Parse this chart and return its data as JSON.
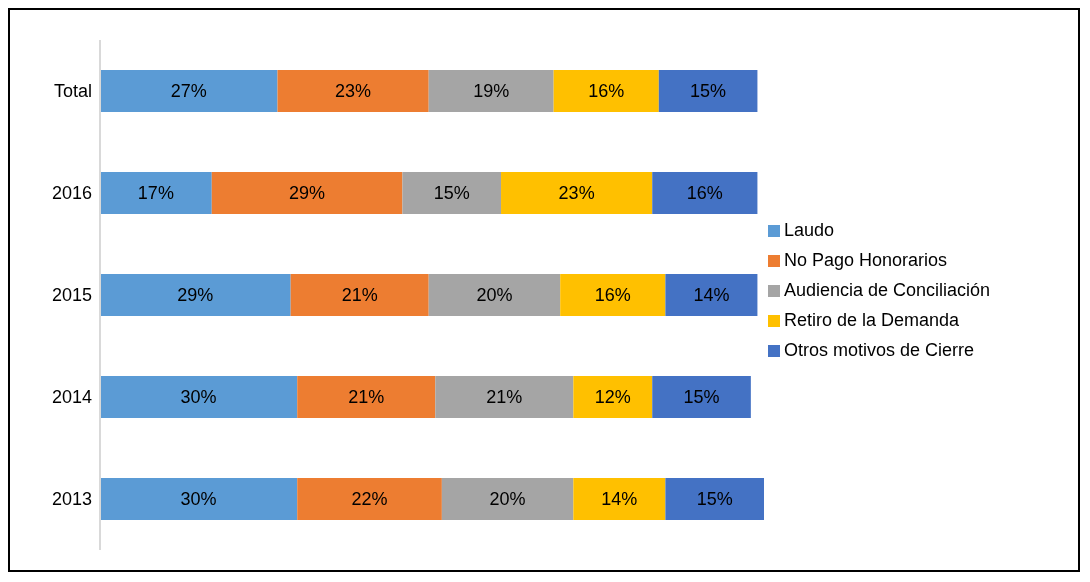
{
  "chart_data": {
    "type": "bar",
    "orientation": "horizontal",
    "stacked": true,
    "legend": "right",
    "tick_labels": "y",
    "grid": false,
    "categories": [
      "Total",
      "2016",
      "2015",
      "2014",
      "2013"
    ],
    "series": [
      {
        "name": "Laudo",
        "color": "#5b9bd5",
        "values": [
          27,
          17,
          29,
          30,
          30
        ],
        "value_labels": [
          "27%",
          "17%",
          "29%",
          "30%",
          "30%"
        ]
      },
      {
        "name": "No Pago Honorarios",
        "color": "#ed7d31",
        "values": [
          23,
          29,
          21,
          21,
          22
        ],
        "value_labels": [
          "23%",
          "29%",
          "21%",
          "21%",
          "22%"
        ]
      },
      {
        "name": "Audiencia de Conciliación",
        "color": "#a5a5a5",
        "values": [
          19,
          15,
          20,
          21,
          20
        ],
        "value_labels": [
          "19%",
          "15%",
          "20%",
          "21%",
          "20%"
        ]
      },
      {
        "name": "Retiro de la Demanda",
        "color": "#ffc000",
        "values": [
          16,
          23,
          16,
          12,
          14
        ],
        "value_labels": [
          "16%",
          "23%",
          "16%",
          "12%",
          "14%"
        ]
      },
      {
        "name": "Otros motivos de Cierre",
        "color": "#4472c4",
        "values": [
          15,
          16,
          14,
          15,
          15
        ],
        "value_labels": [
          "15%",
          "16%",
          "14%",
          "15%",
          "15%"
        ]
      }
    ]
  }
}
